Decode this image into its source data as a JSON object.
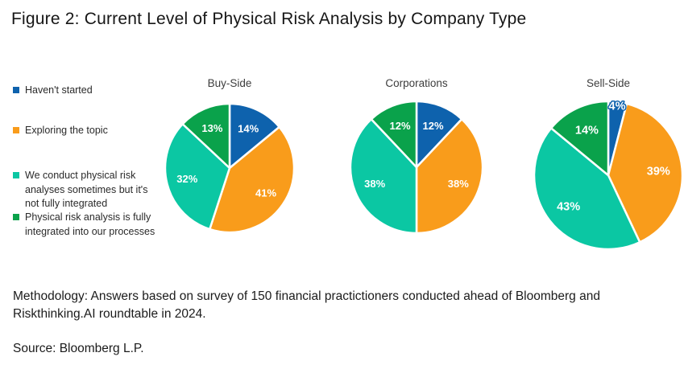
{
  "title": "Figure 2: Current Level of Physical Risk Analysis by Company Type",
  "chart_data": {
    "type": "pie",
    "unit": "%",
    "slice_order": "clockwise-from-top",
    "legend_position": "left",
    "categories": [
      "Haven't started",
      "Exploring the topic",
      "We conduct physical risk analyses sometimes but it's not fully integrated",
      "Physical risk analysis is fully integrated into our processes"
    ],
    "colors": [
      "#0E62AD",
      "#F99C1B",
      "#0BC7A3",
      "#0AA24B"
    ],
    "pies": [
      {
        "title": "Buy-Side",
        "values": [
          14,
          41,
          32,
          13
        ],
        "radius": 80
      },
      {
        "title": "Corporations",
        "values": [
          12,
          38,
          38,
          12
        ],
        "radius": 82
      },
      {
        "title": "Sell-Side",
        "values": [
          4,
          39,
          43,
          14
        ],
        "radius": 92
      }
    ]
  },
  "footer": {
    "methodology_lines": [
      "Methodology: Answers based on survey of 150 financial practictioners conducted ahead of Bloomberg and",
      "Riskthinking.AI roundtable in 2024."
    ],
    "source": "Source: Bloomberg L.P."
  }
}
